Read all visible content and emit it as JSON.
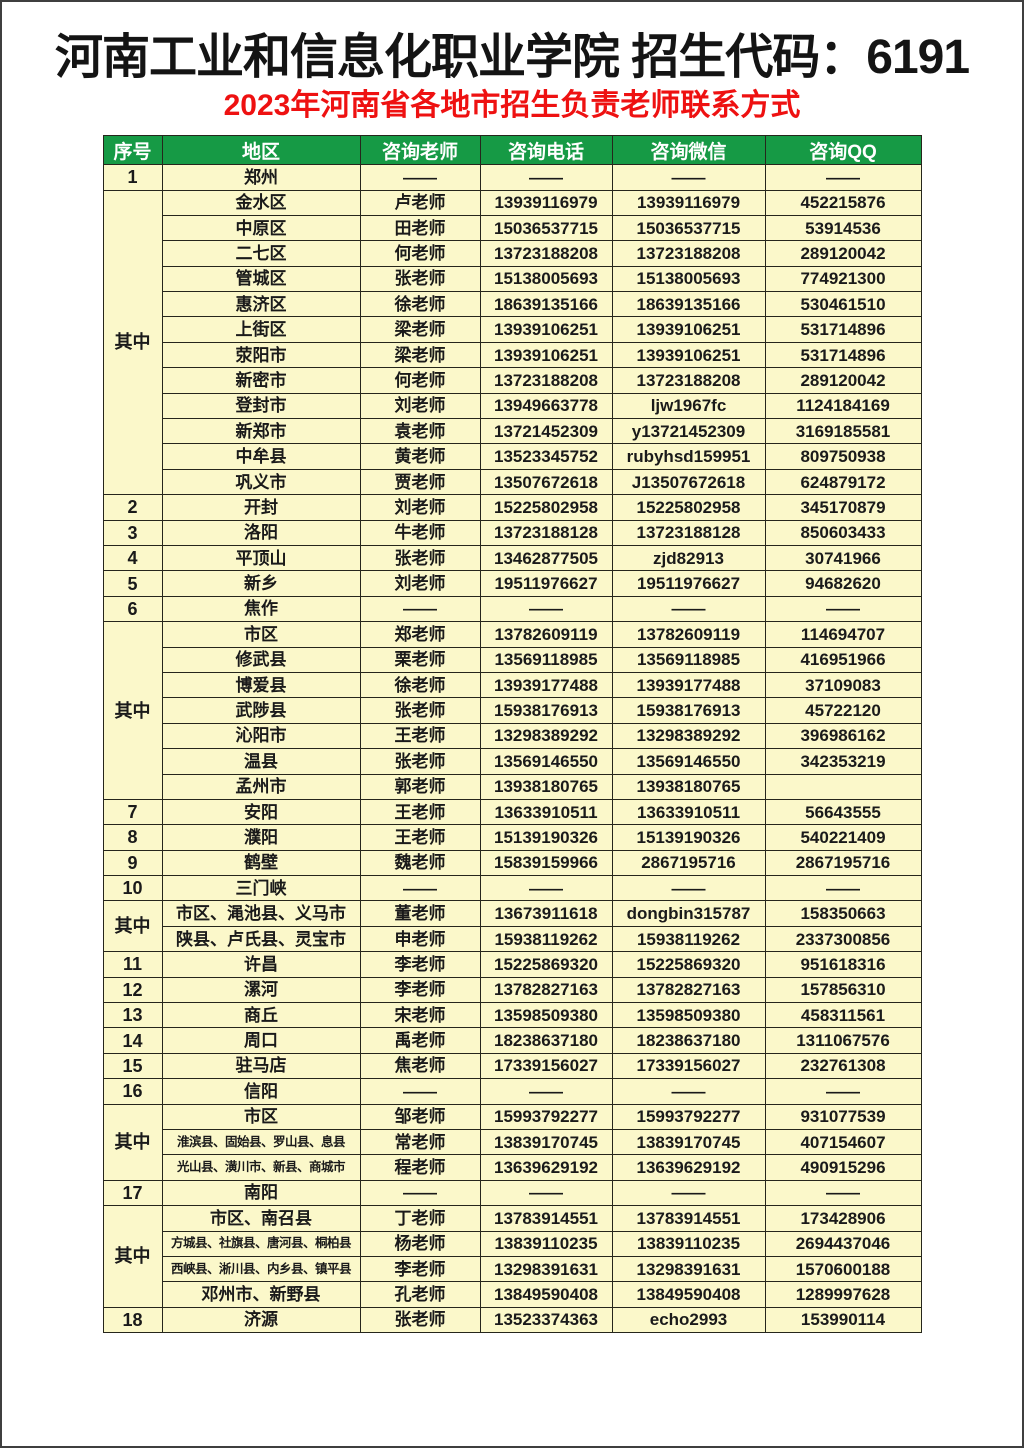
{
  "page": {
    "title": "河南工业和信息化职业学院 招生代码：6191",
    "subtitle": "2023年河南省各地市招生负责老师联系方式"
  },
  "colors": {
    "header_green": "#169a45",
    "cell_yellow": "#fbf8ca",
    "subtitle_red": "#ee1111",
    "border_dark": "#26261c"
  },
  "table": {
    "headers": [
      "序号",
      "地区",
      "咨询老师",
      "咨询电话",
      "咨询微信",
      "咨询QQ"
    ],
    "rows": [
      {
        "num": "1",
        "span": 1,
        "region": "郑州",
        "teacher": "——",
        "phone": "——",
        "wechat": "——",
        "qq": "——"
      },
      {
        "num": "其中",
        "span": 12,
        "region": "金水区",
        "teacher": "卢老师",
        "phone": "13939116979",
        "wechat": "13939116979",
        "qq": "452215876"
      },
      {
        "region": "中原区",
        "teacher": "田老师",
        "phone": "15036537715",
        "wechat": "15036537715",
        "qq": "53914536"
      },
      {
        "region": "二七区",
        "teacher": "何老师",
        "phone": "13723188208",
        "wechat": "13723188208",
        "qq": "289120042"
      },
      {
        "region": "管城区",
        "teacher": "张老师",
        "phone": "15138005693",
        "wechat": "15138005693",
        "qq": "774921300"
      },
      {
        "region": "惠济区",
        "teacher": "徐老师",
        "phone": "18639135166",
        "wechat": "18639135166",
        "qq": "530461510"
      },
      {
        "region": "上街区",
        "teacher": "梁老师",
        "phone": "13939106251",
        "wechat": "13939106251",
        "qq": "531714896"
      },
      {
        "region": "荥阳市",
        "teacher": "梁老师",
        "phone": "13939106251",
        "wechat": "13939106251",
        "qq": "531714896"
      },
      {
        "region": "新密市",
        "teacher": "何老师",
        "phone": "13723188208",
        "wechat": "13723188208",
        "qq": "289120042"
      },
      {
        "region": "登封市",
        "teacher": "刘老师",
        "phone": "13949663778",
        "wechat": "ljw1967fc",
        "qq": "1124184169"
      },
      {
        "region": "新郑市",
        "teacher": "袁老师",
        "phone": "13721452309",
        "wechat": "y13721452309",
        "qq": "3169185581"
      },
      {
        "region": "中牟县",
        "teacher": "黄老师",
        "phone": "13523345752",
        "wechat": "rubyhsd159951",
        "qq": "809750938"
      },
      {
        "region": "巩义市",
        "teacher": "贾老师",
        "phone": "13507672618",
        "wechat": "J13507672618",
        "qq": "624879172"
      },
      {
        "num": "2",
        "span": 1,
        "region": "开封",
        "teacher": "刘老师",
        "phone": "15225802958",
        "wechat": "15225802958",
        "qq": "345170879"
      },
      {
        "num": "3",
        "span": 1,
        "region": "洛阳",
        "teacher": "牛老师",
        "phone": "13723188128",
        "wechat": "13723188128",
        "qq": "850603433"
      },
      {
        "num": "4",
        "span": 1,
        "region": "平顶山",
        "teacher": "张老师",
        "phone": "13462877505",
        "wechat": "zjd82913",
        "qq": "30741966"
      },
      {
        "num": "5",
        "span": 1,
        "region": "新乡",
        "teacher": "刘老师",
        "phone": "19511976627",
        "wechat": "19511976627",
        "qq": "94682620"
      },
      {
        "num": "6",
        "span": 1,
        "region": "焦作",
        "teacher": "——",
        "phone": "——",
        "wechat": "——",
        "qq": "——"
      },
      {
        "num": "其中",
        "span": 7,
        "region": "市区",
        "teacher": "郑老师",
        "phone": "13782609119",
        "wechat": "13782609119",
        "qq": "114694707"
      },
      {
        "region": "修武县",
        "teacher": "栗老师",
        "phone": "13569118985",
        "wechat": "13569118985",
        "qq": "416951966"
      },
      {
        "region": "博爱县",
        "teacher": "徐老师",
        "phone": "13939177488",
        "wechat": "13939177488",
        "qq": "37109083"
      },
      {
        "region": "武陟县",
        "teacher": "张老师",
        "phone": "15938176913",
        "wechat": "15938176913",
        "qq": "45722120"
      },
      {
        "region": "沁阳市",
        "teacher": "王老师",
        "phone": "13298389292",
        "wechat": "13298389292",
        "qq": "396986162"
      },
      {
        "region": "温县",
        "teacher": "张老师",
        "phone": "13569146550",
        "wechat": "13569146550",
        "qq": "342353219"
      },
      {
        "region": "孟州市",
        "teacher": "郭老师",
        "phone": "13938180765",
        "wechat": "13938180765",
        "qq": ""
      },
      {
        "num": "7",
        "span": 1,
        "region": "安阳",
        "teacher": "王老师",
        "phone": "13633910511",
        "wechat": "13633910511",
        "qq": "56643555"
      },
      {
        "num": "8",
        "span": 1,
        "region": "濮阳",
        "teacher": "王老师",
        "phone": "15139190326",
        "wechat": "15139190326",
        "qq": "540221409"
      },
      {
        "num": "9",
        "span": 1,
        "region": "鹤壁",
        "teacher": "魏老师",
        "phone": "15839159966",
        "wechat": "2867195716",
        "qq": "2867195716"
      },
      {
        "num": "10",
        "span": 1,
        "region": "三门峡",
        "teacher": "——",
        "phone": "——",
        "wechat": "——",
        "qq": "——"
      },
      {
        "num": "其中",
        "span": 2,
        "region": "市区、渑池县、义马市",
        "teacher": "董老师",
        "phone": "13673911618",
        "wechat": "dongbin315787",
        "qq": "158350663"
      },
      {
        "region": "陕县、卢氏县、灵宝市",
        "teacher": "申老师",
        "phone": "15938119262",
        "wechat": "15938119262",
        "qq": "2337300856"
      },
      {
        "num": "11",
        "span": 1,
        "region": "许昌",
        "teacher": "李老师",
        "phone": "15225869320",
        "wechat": "15225869320",
        "qq": "951618316"
      },
      {
        "num": "12",
        "span": 1,
        "region": "漯河",
        "teacher": "李老师",
        "phone": "13782827163",
        "wechat": "13782827163",
        "qq": "157856310"
      },
      {
        "num": "13",
        "span": 1,
        "region": "商丘",
        "teacher": "宋老师",
        "phone": "13598509380",
        "wechat": "13598509380",
        "qq": "458311561"
      },
      {
        "num": "14",
        "span": 1,
        "region": "周口",
        "teacher": "禹老师",
        "phone": "18238637180",
        "wechat": "18238637180",
        "qq": "1311067576"
      },
      {
        "num": "15",
        "span": 1,
        "region": "驻马店",
        "teacher": "焦老师",
        "phone": "17339156027",
        "wechat": "17339156027",
        "qq": "232761308"
      },
      {
        "num": "16",
        "span": 1,
        "region": "信阳",
        "teacher": "——",
        "phone": "——",
        "wechat": "——",
        "qq": "——"
      },
      {
        "num": "其中",
        "span": 3,
        "region": "市区",
        "teacher": "邹老师",
        "phone": "15993792277",
        "wechat": "15993792277",
        "qq": "931077539"
      },
      {
        "region": "淮滨县、固始县、罗山县、息县",
        "small": true,
        "teacher": "常老师",
        "phone": "13839170745",
        "wechat": "13839170745",
        "qq": "407154607"
      },
      {
        "region": "光山县、潢川市、新县、商城市",
        "small": true,
        "teacher": "程老师",
        "phone": "13639629192",
        "wechat": "13639629192",
        "qq": "490915296"
      },
      {
        "num": "17",
        "span": 1,
        "region": "南阳",
        "teacher": "——",
        "phone": "——",
        "wechat": "——",
        "qq": "——"
      },
      {
        "num": "其中",
        "span": 4,
        "region": "市区、南召县",
        "teacher": "丁老师",
        "phone": "13783914551",
        "wechat": "13783914551",
        "qq": "173428906"
      },
      {
        "region": "方城县、社旗县、唐河县、桐柏县",
        "small": true,
        "teacher": "杨老师",
        "phone": "13839110235",
        "wechat": "13839110235",
        "qq": "2694437046"
      },
      {
        "region": "西峡县、淅川县、内乡县、镇平县",
        "small": true,
        "teacher": "李老师",
        "phone": "13298391631",
        "wechat": "13298391631",
        "qq": "1570600188"
      },
      {
        "region": "邓州市、新野县",
        "teacher": "孔老师",
        "phone": "13849590408",
        "wechat": "13849590408",
        "qq": "1289997628"
      },
      {
        "num": "18",
        "span": 1,
        "region": "济源",
        "teacher": "张老师",
        "phone": "13523374363",
        "wechat": "echo2993",
        "qq": "153990114"
      }
    ]
  }
}
